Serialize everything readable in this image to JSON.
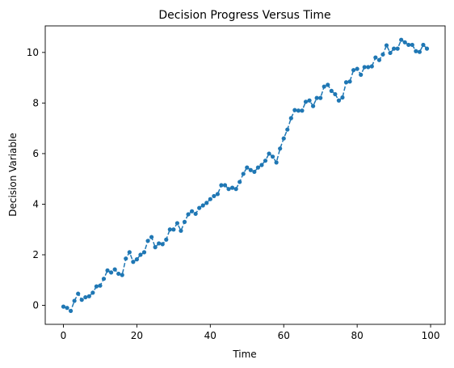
{
  "chart_data": {
    "type": "line",
    "title": "Decision Progress Versus Time",
    "xlabel": "Time",
    "ylabel": "Decision Variable",
    "xlim": [
      -4.95,
      103.95
    ],
    "ylim": [
      -0.75,
      11.05
    ],
    "xticks": [
      0,
      20,
      40,
      60,
      80,
      100
    ],
    "yticks": [
      0,
      2,
      4,
      6,
      8,
      10
    ],
    "grid": false,
    "line_style": "dashed",
    "marker": "circle",
    "color": "#1f77b4",
    "series": [
      {
        "x": [
          0,
          1,
          2,
          3,
          4,
          5,
          6,
          7,
          8,
          9,
          10,
          11,
          12,
          13,
          14,
          15,
          16,
          17,
          18,
          19,
          20,
          21,
          22,
          23,
          24,
          25,
          26,
          27,
          28,
          29,
          30,
          31,
          32,
          33,
          34,
          35,
          36,
          37,
          38,
          39,
          40,
          41,
          42,
          43,
          44,
          45,
          46,
          47,
          48,
          49,
          50,
          51,
          52,
          53,
          54,
          55,
          56,
          57,
          58,
          59,
          60,
          61,
          62,
          63,
          64,
          65,
          66,
          67,
          68,
          69,
          70,
          71,
          72,
          73,
          74,
          75,
          76,
          77,
          78,
          79,
          80,
          81,
          82,
          83,
          84,
          85,
          86,
          87,
          88,
          89,
          90,
          91,
          92,
          93,
          94,
          95,
          96,
          97,
          98,
          99
        ],
        "y": [
          -0.05,
          -0.1,
          -0.22,
          0.18,
          0.46,
          0.22,
          0.32,
          0.36,
          0.5,
          0.75,
          0.78,
          1.05,
          1.38,
          1.3,
          1.42,
          1.25,
          1.2,
          1.85,
          2.1,
          1.72,
          1.82,
          2.0,
          2.1,
          2.55,
          2.7,
          2.3,
          2.45,
          2.42,
          2.6,
          3.0,
          3.0,
          3.25,
          2.95,
          3.3,
          3.6,
          3.72,
          3.62,
          3.85,
          3.95,
          4.05,
          4.2,
          4.32,
          4.4,
          4.75,
          4.75,
          4.6,
          4.65,
          4.6,
          4.88,
          5.2,
          5.45,
          5.35,
          5.28,
          5.45,
          5.55,
          5.72,
          6.0,
          5.88,
          5.65,
          6.2,
          6.6,
          6.95,
          7.4,
          7.72,
          7.7,
          7.7,
          8.05,
          8.1,
          7.88,
          8.2,
          8.2,
          8.65,
          8.72,
          8.48,
          8.35,
          8.1,
          8.22,
          8.82,
          8.85,
          9.3,
          9.35,
          9.12,
          9.42,
          9.42,
          9.45,
          9.8,
          9.7,
          9.92,
          10.28,
          9.98,
          10.15,
          10.15,
          10.5,
          10.4,
          10.3,
          10.3,
          10.05,
          10.02,
          10.3,
          10.15
        ]
      }
    ]
  }
}
